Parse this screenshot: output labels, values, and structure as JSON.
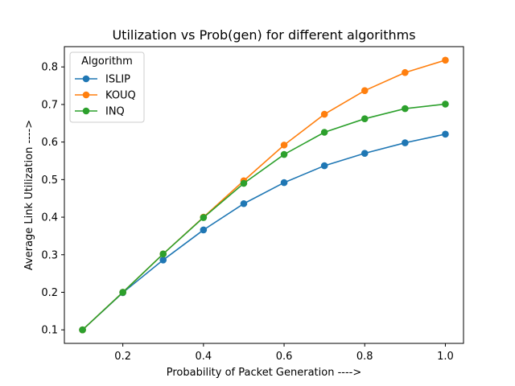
{
  "chart_data": {
    "type": "line",
    "title": "Utilization vs Prob(gen) for different algorithms",
    "xlabel": "Probability of Packet Generation ---->",
    "ylabel": "Average Link Utilization ---->",
    "xlim": [
      0.055,
      1.045
    ],
    "ylim": [
      0.064,
      0.854
    ],
    "xticks": [
      0.2,
      0.4,
      0.6,
      0.8,
      1.0
    ],
    "xtick_labels": [
      "0.2",
      "0.4",
      "0.6",
      "0.8",
      "1.0"
    ],
    "yticks": [
      0.1,
      0.2,
      0.3,
      0.4,
      0.5,
      0.6,
      0.7,
      0.8
    ],
    "ytick_labels": [
      "0.1",
      "0.2",
      "0.3",
      "0.4",
      "0.5",
      "0.6",
      "0.7",
      "0.8"
    ],
    "grid": false,
    "legend": {
      "title": "Algorithm",
      "placement": "upper-left"
    },
    "x": [
      0.1,
      0.2,
      0.3,
      0.4,
      0.5,
      0.6,
      0.7,
      0.8,
      0.9,
      1.0
    ],
    "series": [
      {
        "name": "ISLIP",
        "color": "#1f77b4",
        "values": [
          0.1,
          0.199,
          0.286,
          0.366,
          0.436,
          0.492,
          0.537,
          0.57,
          0.598,
          0.621
        ]
      },
      {
        "name": "KOUQ",
        "color": "#ff7f0e",
        "values": [
          0.1,
          0.2,
          0.302,
          0.4,
          0.497,
          0.592,
          0.674,
          0.737,
          0.785,
          0.818
        ]
      },
      {
        "name": "INQ",
        "color": "#2ca02c",
        "values": [
          0.1,
          0.2,
          0.302,
          0.399,
          0.49,
          0.567,
          0.626,
          0.662,
          0.689,
          0.701
        ]
      }
    ]
  }
}
